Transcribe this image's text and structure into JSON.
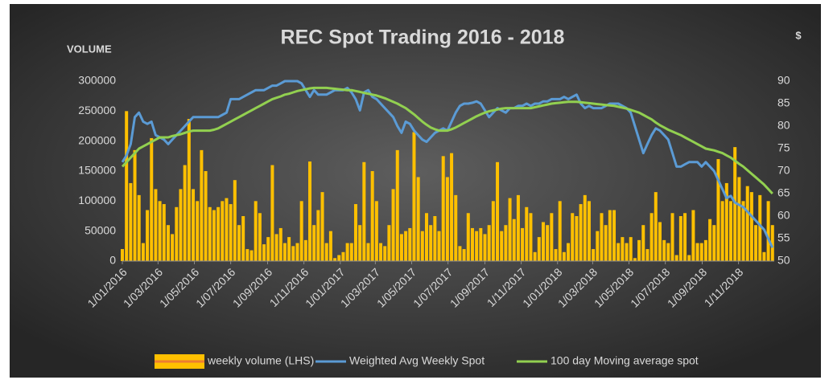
{
  "chart_data": {
    "type": "bar",
    "title": "REC Spot Trading 2016 - 2018",
    "y_label": "VOLUME",
    "y2_label": "$",
    "xlim": [
      "1/01/2016",
      "31/12/2018"
    ],
    "xticks": [
      "1/01/2016",
      "1/03/2016",
      "1/05/2016",
      "1/07/2016",
      "1/09/2016",
      "1/11/2016",
      "1/01/2017",
      "1/03/2017",
      "1/05/2017",
      "1/07/2017",
      "1/09/2017",
      "1/11/2017",
      "1/01/2018",
      "1/03/2018",
      "1/05/2018",
      "1/07/2018",
      "1/09/2018",
      "1/11/2018"
    ],
    "ylim": [
      0,
      300000
    ],
    "yticks": [
      0,
      50000,
      100000,
      150000,
      200000,
      250000,
      300000
    ],
    "y2lim": [
      50,
      90
    ],
    "y2ticks": [
      50,
      55,
      60,
      65,
      70,
      75,
      80,
      85,
      90
    ],
    "grid": false,
    "legend": "bottom",
    "x": [
      "1/01/2016",
      "8/01/2016",
      "15/01/2016",
      "22/01/2016",
      "29/01/2016",
      "5/02/2016",
      "12/02/2016",
      "19/02/2016",
      "26/02/2016",
      "4/03/2016",
      "11/03/2016",
      "18/03/2016",
      "25/03/2016",
      "1/04/2016",
      "8/04/2016",
      "15/04/2016",
      "22/04/2016",
      "29/04/2016",
      "6/05/2016",
      "13/05/2016",
      "20/05/2016",
      "27/05/2016",
      "3/06/2016",
      "10/06/2016",
      "17/06/2016",
      "24/06/2016",
      "1/07/2016",
      "8/07/2016",
      "15/07/2016",
      "22/07/2016",
      "29/07/2016",
      "5/08/2016",
      "12/08/2016",
      "19/08/2016",
      "26/08/2016",
      "2/09/2016",
      "9/09/2016",
      "16/09/2016",
      "23/09/2016",
      "30/09/2016",
      "7/10/2016",
      "14/10/2016",
      "21/10/2016",
      "28/10/2016",
      "4/11/2016",
      "11/11/2016",
      "18/11/2016",
      "25/11/2016",
      "2/12/2016",
      "9/12/2016",
      "16/12/2016",
      "23/12/2016",
      "30/12/2016",
      "6/01/2017",
      "13/01/2017",
      "20/01/2017",
      "27/01/2017",
      "3/02/2017",
      "10/02/2017",
      "17/02/2017",
      "24/02/2017",
      "3/03/2017",
      "10/03/2017",
      "17/03/2017",
      "24/03/2017",
      "31/03/2017",
      "7/04/2017",
      "14/04/2017",
      "21/04/2017",
      "28/04/2017",
      "5/05/2017",
      "12/05/2017",
      "19/05/2017",
      "26/05/2017",
      "2/06/2017",
      "9/06/2017",
      "16/06/2017",
      "23/06/2017",
      "30/06/2017",
      "7/07/2017",
      "14/07/2017",
      "21/07/2017",
      "28/07/2017",
      "4/08/2017",
      "11/08/2017",
      "18/08/2017",
      "25/08/2017",
      "1/09/2017",
      "8/09/2017",
      "15/09/2017",
      "22/09/2017",
      "29/09/2017",
      "6/10/2017",
      "13/10/2017",
      "20/10/2017",
      "27/10/2017",
      "3/11/2017",
      "10/11/2017",
      "17/11/2017",
      "24/11/2017",
      "1/12/2017",
      "8/12/2017",
      "15/12/2017",
      "22/12/2017",
      "29/12/2017",
      "5/01/2018",
      "12/01/2018",
      "19/01/2018",
      "26/01/2018",
      "2/02/2018",
      "9/02/2018",
      "16/02/2018",
      "23/02/2018",
      "2/03/2018",
      "9/03/2018",
      "16/03/2018",
      "23/03/2018",
      "30/03/2018",
      "6/04/2018",
      "13/04/2018",
      "20/04/2018",
      "27/04/2018",
      "4/05/2018",
      "11/05/2018",
      "18/05/2018",
      "25/05/2018",
      "1/06/2018",
      "8/06/2018",
      "15/06/2018",
      "22/06/2018",
      "29/06/2018",
      "6/07/2018",
      "13/07/2018",
      "20/07/2018",
      "27/07/2018",
      "3/08/2018",
      "10/08/2018",
      "17/08/2018",
      "24/08/2018",
      "31/08/2018",
      "7/09/2018",
      "14/09/2018",
      "21/09/2018",
      "28/09/2018",
      "5/10/2018",
      "12/10/2018",
      "19/10/2018",
      "26/10/2018",
      "2/11/2018",
      "9/11/2018",
      "16/11/2018",
      "23/11/2018",
      "30/11/2018",
      "7/12/2018",
      "14/12/2018",
      "21/12/2018",
      "28/12/2018"
    ],
    "series": [
      {
        "name": "weekly volume (LHS)",
        "type": "bar",
        "color": "#ffc000",
        "values": [
          20000,
          250000,
          130000,
          185000,
          110000,
          30000,
          85000,
          205000,
          120000,
          100000,
          95000,
          60000,
          45000,
          90000,
          120000,
          160000,
          237000,
          120000,
          100000,
          185000,
          150000,
          90000,
          85000,
          90000,
          100000,
          105000,
          95000,
          135000,
          60000,
          75000,
          20000,
          18000,
          100000,
          80000,
          28000,
          40000,
          160000,
          45000,
          55000,
          30000,
          40000,
          25000,
          30000,
          100000,
          35000,
          166000,
          60000,
          85000,
          115000,
          30000,
          50000,
          5000,
          10000,
          15000,
          30000,
          30000,
          95000,
          60000,
          165000,
          30000,
          150000,
          100000,
          30000,
          25000,
          60000,
          120000,
          185000,
          45000,
          50000,
          55000,
          215000,
          140000,
          50000,
          80000,
          60000,
          75000,
          50000,
          175000,
          140000,
          180000,
          110000,
          25000,
          20000,
          80000,
          55000,
          50000,
          55000,
          45000,
          60000,
          100000,
          165000,
          50000,
          60000,
          105000,
          70000,
          110000,
          55000,
          90000,
          80000,
          15000,
          40000,
          65000,
          60000,
          80000,
          20000,
          100000,
          15000,
          30000,
          80000,
          75000,
          95000,
          110000,
          100000,
          20000,
          50000,
          80000,
          60000,
          85000,
          85000,
          30000,
          40000,
          30000,
          40000,
          5000,
          35000,
          60000,
          20000,
          80000,
          115000,
          65000,
          35000,
          30000,
          80000,
          10000,
          75000,
          80000,
          10000,
          85000,
          30000,
          30000,
          35000,
          70000,
          60000,
          170000,
          100000,
          130000,
          100000,
          190000,
          140000,
          100000,
          125000,
          115000,
          60000,
          110000,
          15000,
          100000,
          60000
        ]
      },
      {
        "name": "Weighted Avg Weekly Spot",
        "type": "line",
        "axis": "y2",
        "color": "#5b9bd5",
        "values": [
          72,
          73.5,
          76,
          82,
          83,
          81,
          80.5,
          81,
          78,
          77.5,
          77,
          76,
          77,
          78,
          79,
          80,
          81,
          82,
          82,
          82,
          82,
          82,
          82,
          82,
          82.5,
          83,
          86,
          86,
          86,
          86.5,
          87,
          87.5,
          88,
          88,
          88,
          88.5,
          89,
          89,
          89.5,
          90,
          90,
          90,
          90,
          89.5,
          88,
          86.5,
          88,
          87,
          87,
          87,
          87.5,
          88,
          88,
          88,
          88.5,
          87.5,
          86,
          83.5,
          87.5,
          88,
          86.5,
          86,
          85,
          84,
          83,
          82,
          80,
          78.5,
          81,
          80.5,
          79,
          78,
          77,
          76.5,
          77.5,
          78.5,
          79,
          79.5,
          79,
          81,
          83,
          84.5,
          85,
          85,
          85.2,
          85.5,
          85,
          83.5,
          82,
          83,
          84,
          83.5,
          83,
          84,
          84,
          84.5,
          84.5,
          85,
          84.5,
          85,
          85,
          85.5,
          85.5,
          86,
          86,
          86,
          86.5,
          86,
          86.5,
          87,
          85,
          84,
          84.5,
          84,
          84,
          84,
          84.5,
          85,
          85,
          85,
          84.5,
          84,
          83,
          80,
          77,
          74,
          76,
          78,
          79.5,
          79,
          78,
          77,
          74,
          71,
          71,
          71.5,
          72,
          72,
          72,
          71,
          72,
          71,
          70,
          68,
          66,
          64,
          64.5,
          63,
          62.5,
          62,
          61,
          60,
          59,
          58,
          57,
          55,
          53
        ]
      },
      {
        "name": "100 day Moving average spot",
        "type": "line",
        "axis": "y2",
        "color": "#92d050",
        "values": [
          71,
          72,
          73,
          74,
          75,
          75.5,
          76,
          76.5,
          77,
          77.5,
          77.5,
          77.5,
          77.8,
          78,
          78.2,
          78.5,
          78.8,
          79,
          79,
          79,
          79,
          79,
          79.2,
          79.5,
          80,
          80.5,
          81,
          81.5,
          82,
          82.5,
          83,
          83.5,
          84,
          84.5,
          85,
          85.5,
          86,
          86.3,
          86.6,
          87,
          87.2,
          87.5,
          87.8,
          88,
          88.2,
          88.4,
          88.5,
          88.5,
          88.5,
          88.5,
          88.4,
          88.3,
          88.2,
          88.1,
          88,
          88,
          87.8,
          87.6,
          87.4,
          87.2,
          87,
          86.8,
          86.5,
          86.2,
          85.8,
          85.4,
          85,
          84.5,
          84,
          83.3,
          82.6,
          81.8,
          81,
          80.3,
          79.7,
          79.3,
          79,
          79,
          79,
          79.3,
          79.7,
          80.2,
          80.7,
          81.2,
          81.7,
          82.2,
          82.6,
          83,
          83.3,
          83.5,
          83.7,
          83.9,
          84,
          84,
          84,
          84,
          84,
          84,
          84,
          84.2,
          84.4,
          84.6,
          84.8,
          85,
          85.1,
          85.2,
          85.3,
          85.4,
          85.4,
          85.4,
          85.3,
          85.2,
          85.1,
          85,
          84.9,
          84.8,
          84.7,
          84.6,
          84.5,
          84.3,
          84.1,
          83.9,
          83.6,
          83.3,
          83,
          82.5,
          82,
          81.5,
          80.8,
          80.2,
          79.7,
          79.2,
          78.8,
          78.4,
          78,
          77.5,
          77,
          76.5,
          76,
          75.5,
          75,
          74.8,
          74.6,
          74.3,
          74,
          73.5,
          73,
          72.3,
          71.6,
          71,
          70.2,
          69.4,
          68.6,
          67.8,
          67,
          66,
          65
        ]
      }
    ]
  }
}
